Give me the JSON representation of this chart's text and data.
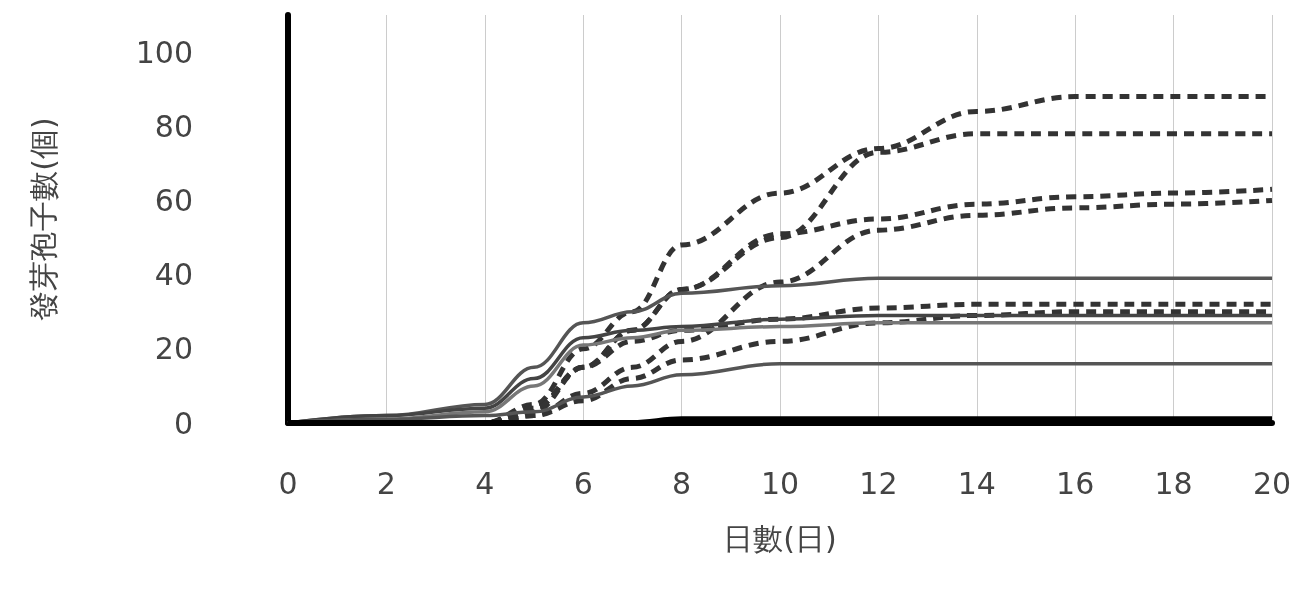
{
  "chart_data": {
    "type": "line",
    "xlabel": "日數(日)",
    "ylabel": "發芽孢子數(個)",
    "x": [
      0,
      2,
      4,
      5,
      6,
      7,
      8,
      10,
      12,
      14,
      16,
      18,
      20
    ],
    "xlim": [
      0,
      20
    ],
    "xticks": [
      0,
      2,
      4,
      6,
      8,
      10,
      12,
      14,
      16,
      18,
      20
    ],
    "ylim": [
      0,
      110
    ],
    "yticks": [
      0,
      20,
      40,
      60,
      80,
      100
    ],
    "grid": "x",
    "marker": "none",
    "series": [
      {
        "color": "#333333",
        "line_style": "dashed",
        "values": [
          0,
          0,
          0,
          5,
          20,
          30,
          48,
          62,
          74,
          84,
          88,
          88,
          88
        ]
      },
      {
        "color": "#333333",
        "line_style": "dashed",
        "values": [
          0,
          0,
          0,
          3,
          15,
          25,
          36,
          50,
          73,
          78,
          78,
          78,
          78
        ]
      },
      {
        "color": "#333333",
        "line_style": "dashed",
        "values": [
          0,
          0,
          0,
          4,
          15,
          25,
          36,
          51,
          55,
          59,
          61,
          62,
          63
        ]
      },
      {
        "color": "#333333",
        "line_style": "dashed",
        "values": [
          0,
          0,
          0,
          2,
          8,
          15,
          22,
          38,
          52,
          56,
          58,
          59,
          60
        ]
      },
      {
        "color": "#333333",
        "line_style": "dashed",
        "values": [
          0,
          0,
          0,
          4,
          15,
          22,
          25,
          28,
          31,
          32,
          32,
          32,
          32
        ]
      },
      {
        "color": "#333333",
        "line_style": "dashed",
        "values": [
          0,
          0,
          0,
          2,
          6,
          12,
          17,
          22,
          27,
          29,
          30,
          30,
          30
        ]
      },
      {
        "color": "#555555",
        "line_style": "solid",
        "values": [
          0,
          2,
          5,
          15,
          27,
          30,
          35,
          37,
          39,
          39,
          39,
          39,
          39
        ]
      },
      {
        "color": "#444444",
        "line_style": "solid",
        "values": [
          0,
          2,
          4,
          12,
          23,
          25,
          26,
          28,
          29,
          29,
          29,
          29,
          29
        ]
      },
      {
        "color": "#777777",
        "line_style": "solid",
        "values": [
          0,
          1,
          3,
          10,
          21,
          23,
          25,
          26,
          27,
          27,
          27,
          27,
          27
        ]
      },
      {
        "color": "#555555",
        "line_style": "solid",
        "values": [
          0,
          1,
          2,
          3,
          7,
          10,
          13,
          16,
          16,
          16,
          16,
          16,
          16
        ]
      },
      {
        "color": "#000000",
        "line_style": "solid",
        "values": [
          0,
          0,
          0,
          0,
          0,
          0,
          1,
          1,
          1,
          1,
          1,
          1,
          1
        ]
      }
    ]
  }
}
